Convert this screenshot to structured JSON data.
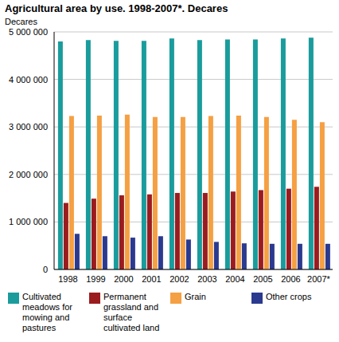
{
  "chart_data": {
    "type": "bar",
    "title": "Agricultural area by use. 1998-2007*. Decares",
    "y_label": "Decares",
    "categories": [
      "1998",
      "1999",
      "2000",
      "2001",
      "2002",
      "2003",
      "2004",
      "2005",
      "2006",
      "2007*"
    ],
    "series": [
      {
        "name": "Cultivated meadows for mowing and pastures",
        "color": "#1a9c9c",
        "values": [
          4800000,
          4830000,
          4810000,
          4810000,
          4860000,
          4830000,
          4840000,
          4840000,
          4860000,
          4880000
        ]
      },
      {
        "name": "Permanent grassland and surface cultivated land",
        "color": "#9b1c1f",
        "values": [
          1400000,
          1490000,
          1560000,
          1580000,
          1610000,
          1610000,
          1640000,
          1670000,
          1700000,
          1740000
        ]
      },
      {
        "name": "Grain",
        "color": "#f5a043",
        "values": [
          3230000,
          3240000,
          3260000,
          3210000,
          3210000,
          3230000,
          3240000,
          3210000,
          3150000,
          3100000
        ]
      },
      {
        "name": "Other crops",
        "color": "#2b3a8f",
        "values": [
          750000,
          700000,
          670000,
          700000,
          630000,
          580000,
          550000,
          540000,
          540000,
          540000
        ]
      }
    ],
    "ylim": [
      0,
      5000000
    ],
    "yticks": [
      0,
      {
        "value": 1000000,
        "label": "1 000 000"
      },
      {
        "value": 2000000,
        "label": "2 000 000"
      },
      {
        "value": 3000000,
        "label": "3 000 000"
      },
      {
        "value": 4000000,
        "label": "4 000 000"
      },
      {
        "value": 5000000,
        "label": "5 000 000"
      }
    ],
    "grid": true,
    "legend": "bottom"
  }
}
